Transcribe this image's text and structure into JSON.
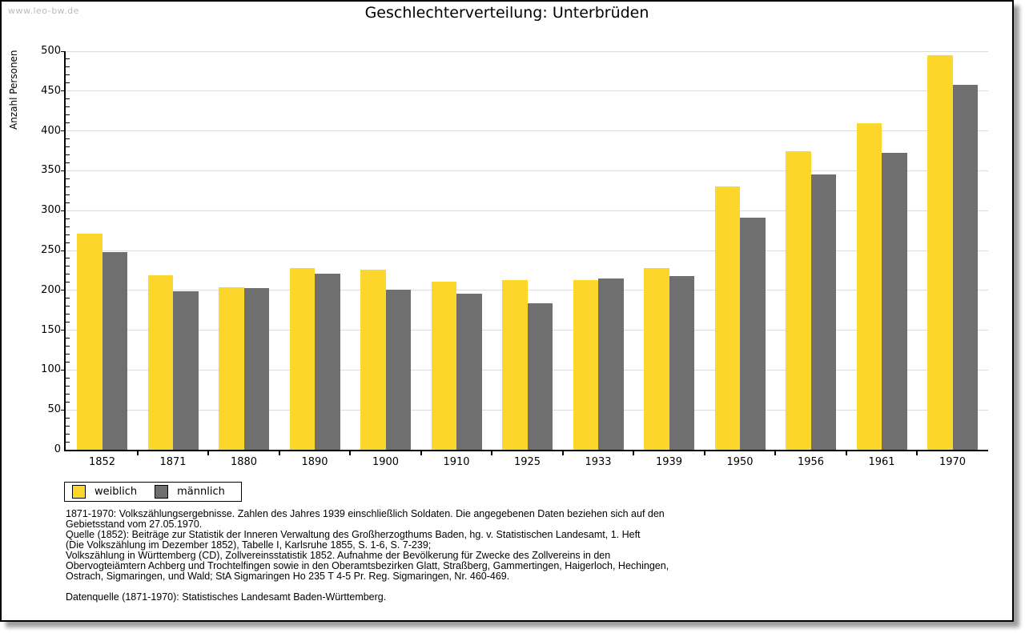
{
  "watermark": "www.leo-bw.de",
  "header": {
    "title": "Geschlechterverteilung: Unterbrüden"
  },
  "chart_data": {
    "type": "bar",
    "title": "Geschlechterverteilung: Unterbrüden",
    "xlabel": "",
    "ylabel": "Anzahl Personen",
    "ylim": [
      0,
      500
    ],
    "ytick_step": 50,
    "yminor_step": 10,
    "grid": true,
    "legend_position": "bottom-left",
    "categories": [
      "1852",
      "1871",
      "1880",
      "1890",
      "1900",
      "1910",
      "1925",
      "1933",
      "1939",
      "1950",
      "1956",
      "1961",
      "1970"
    ],
    "series": [
      {
        "name": "weiblich",
        "color": "#FDD62C",
        "values": [
          271,
          219,
          204,
          228,
          226,
          211,
          213,
          213,
          228,
          330,
          375,
          410,
          495
        ]
      },
      {
        "name": "männlich",
        "color": "#6F6F6F",
        "values": [
          248,
          199,
          203,
          221,
          201,
          196,
          184,
          215,
          218,
          291,
          345,
          372,
          458
        ]
      }
    ]
  },
  "footnotes": {
    "lines": [
      "1871-1970: Volkszählungsergebnisse. Zahlen des Jahres 1939 einschließlich Soldaten. Die angegebenen Daten beziehen sich auf den",
      "Gebietsstand vom 27.05.1970.",
      "Quelle (1852): Beiträge zur Statistik der Inneren Verwaltung des Großherzogthums Baden, hg. v. Statistischen Landesamt, 1. Heft",
      "(Die Volkszählung im Dezember 1852), Tabelle I, Karlsruhe 1855, S. 1-6, S. 7-239;",
      "Volkszählung in Württemberg (CD), Zollvereinsstatistik 1852. Aufnahme der Bevölkerung für Zwecke des Zollvereins in den",
      "Obervogteiämtern Achberg und Trochtelfingen sowie in den Oberamtsbezirken Glatt, Straßberg, Gammertingen, Haigerloch, Hechingen,",
      "Ostrach, Sigmaringen, und Wald; StA Sigmaringen Ho 235 T 4-5 Pr. Reg. Sigmaringen, Nr. 460-469.",
      "",
      "Datenquelle (1871-1970): Statistisches Landesamt Baden-Württemberg."
    ]
  },
  "colors": {
    "grid": "#DCDCDC",
    "axis": "#000000",
    "watermark": "#BCBCBC",
    "background": "#FFFFFF"
  }
}
